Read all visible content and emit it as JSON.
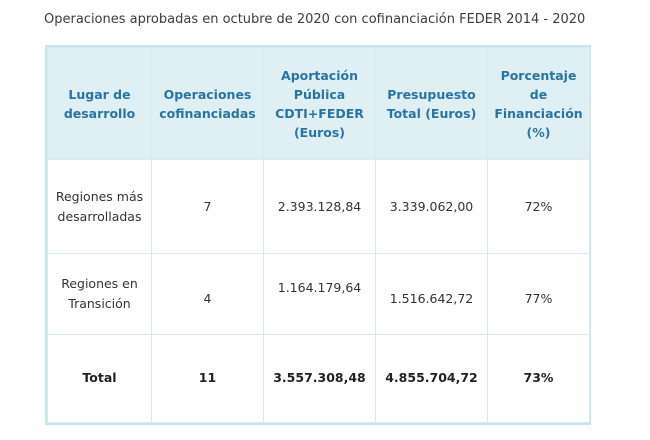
{
  "caption": "Operaciones aprobadas en octubre de 2020 con cofinanciación FEDER 2014 - 2020",
  "headers": [
    "Lugar de desarrollo",
    "Operaciones cofinanciadas",
    "Aportación Pública CDTI+FEDER (Euros)",
    "Presupuesto Total (Euros)",
    "Porcentaje de Financiación (%)"
  ],
  "rows": [
    [
      "Regiones más desarrolladas",
      "7",
      "2.393.128,84",
      "3.339.062,00",
      "72%"
    ],
    [
      "Regiones en Transición",
      "4",
      "1.164.179,64",
      "1.516.642,72",
      "77%"
    ]
  ],
  "total": [
    "Total",
    "11",
    "3.557.308,48",
    "4.855.704,72",
    "73%"
  ],
  "colors": {
    "header_bg": "#dff0f5",
    "header_text": "#2874a6",
    "border": "#c9e5ec"
  }
}
